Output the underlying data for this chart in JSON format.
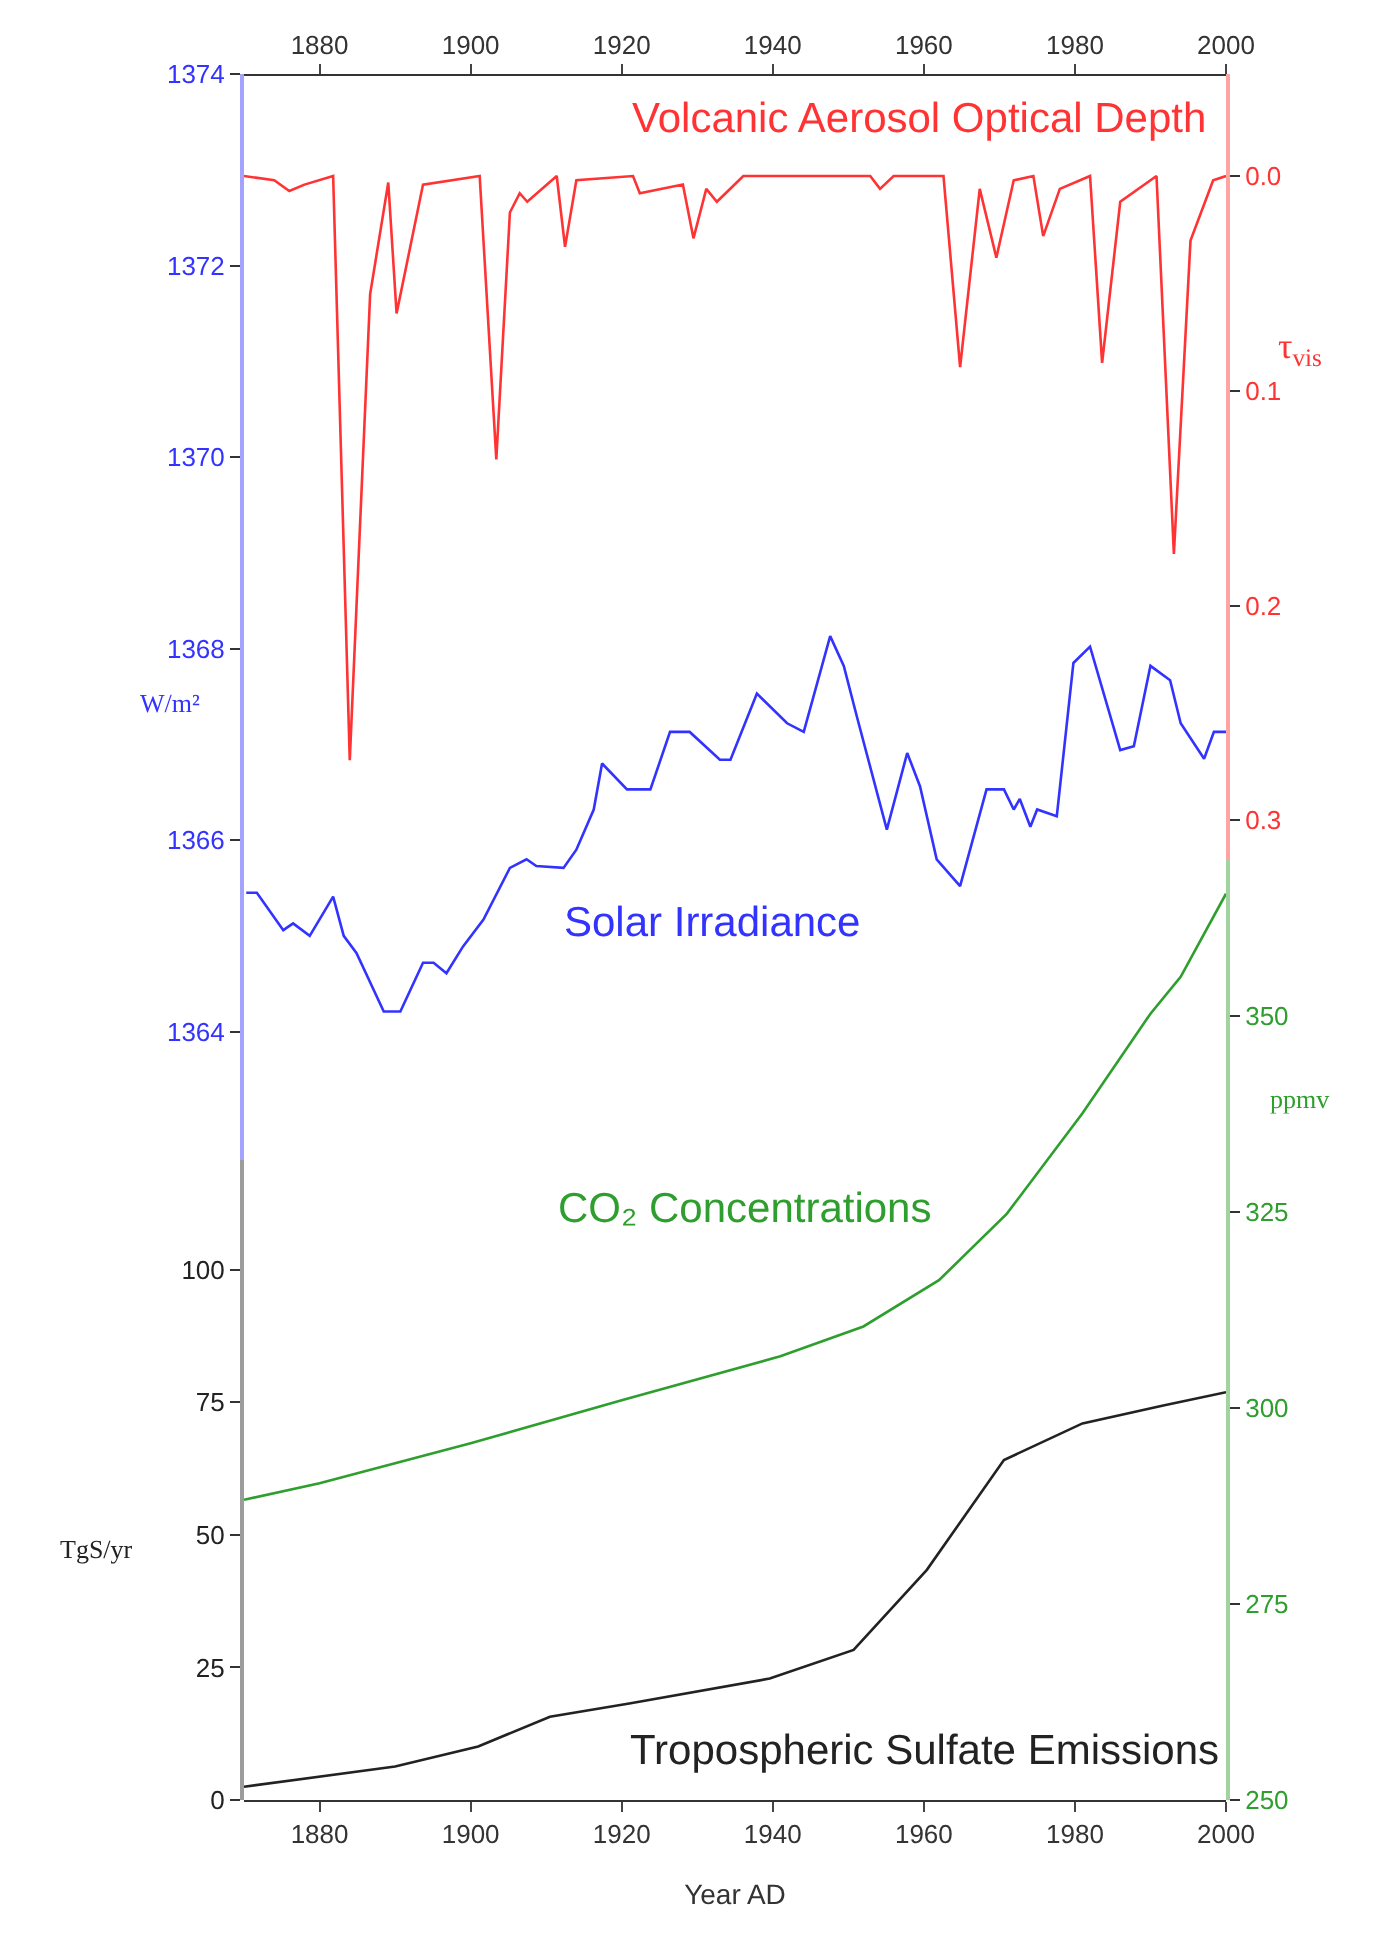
{
  "chart_data": [
    {
      "type": "line",
      "ylabel": "W/m²",
      "y2label": "τ$_{vis}$",
      "legend": false,
      "grid": false,
      "line_style": "solid",
      "xlim": [
        1870,
        2000
      ],
      "xticks": [
        1880,
        1900,
        1920,
        1940,
        1960,
        1980,
        2000
      ],
      "ylim": [
        1362.66,
        1374
      ],
      "yticks": [
        1364,
        1366,
        1368,
        1370,
        1372,
        1374
      ],
      "y2lim": [
        0.3186,
        -0.0475
      ],
      "y2ticks": [
        {
          "value": 0,
          "label": "0.0"
        },
        0.1,
        0.2,
        0.3
      ],
      "series": [
        {
          "name": "Volcanic Aerosol Optical Depth",
          "color": "#ff3333",
          "axis": "y2",
          "x": [
            1870,
            1874,
            1876,
            1878,
            1881.8,
            1884,
            1886.7,
            1889.1,
            1890.2,
            1893.7,
            1901.2,
            1903.4,
            1905.2,
            1906.5,
            1907.5,
            1911.4,
            1912.5,
            1914,
            1921.5,
            1922.4,
            1928.1,
            1929.5,
            1931.2,
            1932.6,
            1936.1,
            1952.9,
            1954.2,
            1956,
            1962.6,
            1964.8,
            1967.4,
            1969.6,
            1971.9,
            1974.5,
            1975.8,
            1978,
            1982,
            1983.6,
            1986,
            1990.8,
            1993.1,
            1995.3,
            1998.3,
            2000
          ],
          "values": [
            0,
            0.002,
            0.007,
            0.004,
            0,
            0.272,
            0.055,
            0.003,
            0.064,
            0.004,
            0,
            0.132,
            0.017,
            0.008,
            0.012,
            0,
            0.033,
            0.002,
            0,
            0.008,
            0.004,
            0.029,
            0.006,
            0.012,
            0,
            0,
            0.006,
            0,
            0,
            0.089,
            0.006,
            0.038,
            0.002,
            0,
            0.028,
            0.006,
            0,
            0.087,
            0.012,
            0,
            0.176,
            0.03,
            0.002,
            0
          ]
        },
        {
          "name": "Solar Irradiance",
          "color": "#3333ff",
          "x": [
            1870.3,
            1871.7,
            1875.2,
            1876.5,
            1878.7,
            1881.8,
            1883.2,
            1884.9,
            1888.5,
            1890.7,
            1893.7,
            1895.1,
            1896.8,
            1899,
            1901.7,
            1905.2,
            1907.4,
            1908.7,
            1912.3,
            1914,
            1916.3,
            1917.4,
            1920.7,
            1923.8,
            1926.4,
            1929,
            1933,
            1934.4,
            1937.9,
            1941.9,
            1944.1,
            1947.6,
            1949.4,
            1951.2,
            1955.1,
            1957.8,
            1959.5,
            1961.7,
            1964.8,
            1968.3,
            1970.6,
            1971.9,
            1972.7,
            1974.1,
            1975,
            1977.6,
            1979.8,
            1982,
            1986,
            1987.8,
            1990,
            1992.6,
            1994,
            1997.1,
            1998.4,
            2000
          ],
          "values": [
            1365.45,
            1365.45,
            1365.06,
            1365.13,
            1365.0,
            1365.41,
            1365.0,
            1364.82,
            1364.21,
            1364.21,
            1364.72,
            1364.72,
            1364.61,
            1364.89,
            1365.17,
            1365.71,
            1365.8,
            1365.73,
            1365.71,
            1365.9,
            1366.32,
            1366.8,
            1366.53,
            1366.53,
            1367.13,
            1367.13,
            1366.84,
            1366.84,
            1367.53,
            1367.22,
            1367.13,
            1368.13,
            1367.82,
            1367.27,
            1366.11,
            1366.91,
            1366.56,
            1365.8,
            1365.52,
            1366.53,
            1366.53,
            1366.32,
            1366.43,
            1366.14,
            1366.32,
            1366.25,
            1367.85,
            1368.02,
            1366.94,
            1366.98,
            1367.82,
            1367.67,
            1367.22,
            1366.85,
            1367.13,
            1367.13
          ]
        }
      ]
    },
    {
      "type": "line",
      "xlabel": "Year AD",
      "ylabel": "TgS/yr",
      "y2label": "ppmv",
      "legend": false,
      "grid": false,
      "line_style": "solid",
      "xlim": [
        1870,
        2000
      ],
      "xticks": [
        1880,
        1900,
        1920,
        1940,
        1960,
        1980,
        2000
      ],
      "ylim": [
        0,
        120.7
      ],
      "yticks": [
        0,
        25,
        50,
        75,
        100
      ],
      "y2lim": [
        250,
        369.9
      ],
      "y2ticks": [
        250,
        275,
        300,
        325,
        350
      ],
      "series": [
        {
          "name": "CO₂ Concentrations",
          "color": "#2e9e2e",
          "axis": "y2",
          "x": [
            1870,
            1880,
            1900,
            1920,
            1941,
            1952,
            1962,
            1971,
            1981,
            1990,
            1994,
            2000
          ],
          "values": [
            288.3,
            290.4,
            295.5,
            301.0,
            306.6,
            310.4,
            316.3,
            324.8,
            337.6,
            350.3,
            355.0,
            365.6
          ]
        },
        {
          "name": "Tropospheric Sulfate Emissions",
          "color": "#222222",
          "x": [
            1870,
            1890,
            1901,
            1910.5,
            1921,
            1939.6,
            1950.7,
            1960.4,
            1970.6,
            1981,
            1991.7,
            2000
          ],
          "values": [
            2.5,
            6.3,
            10.1,
            15.7,
            18.2,
            22.9,
            28.3,
            43.4,
            64.1,
            71.0,
            74.4,
            76.9
          ]
        }
      ]
    }
  ]
}
